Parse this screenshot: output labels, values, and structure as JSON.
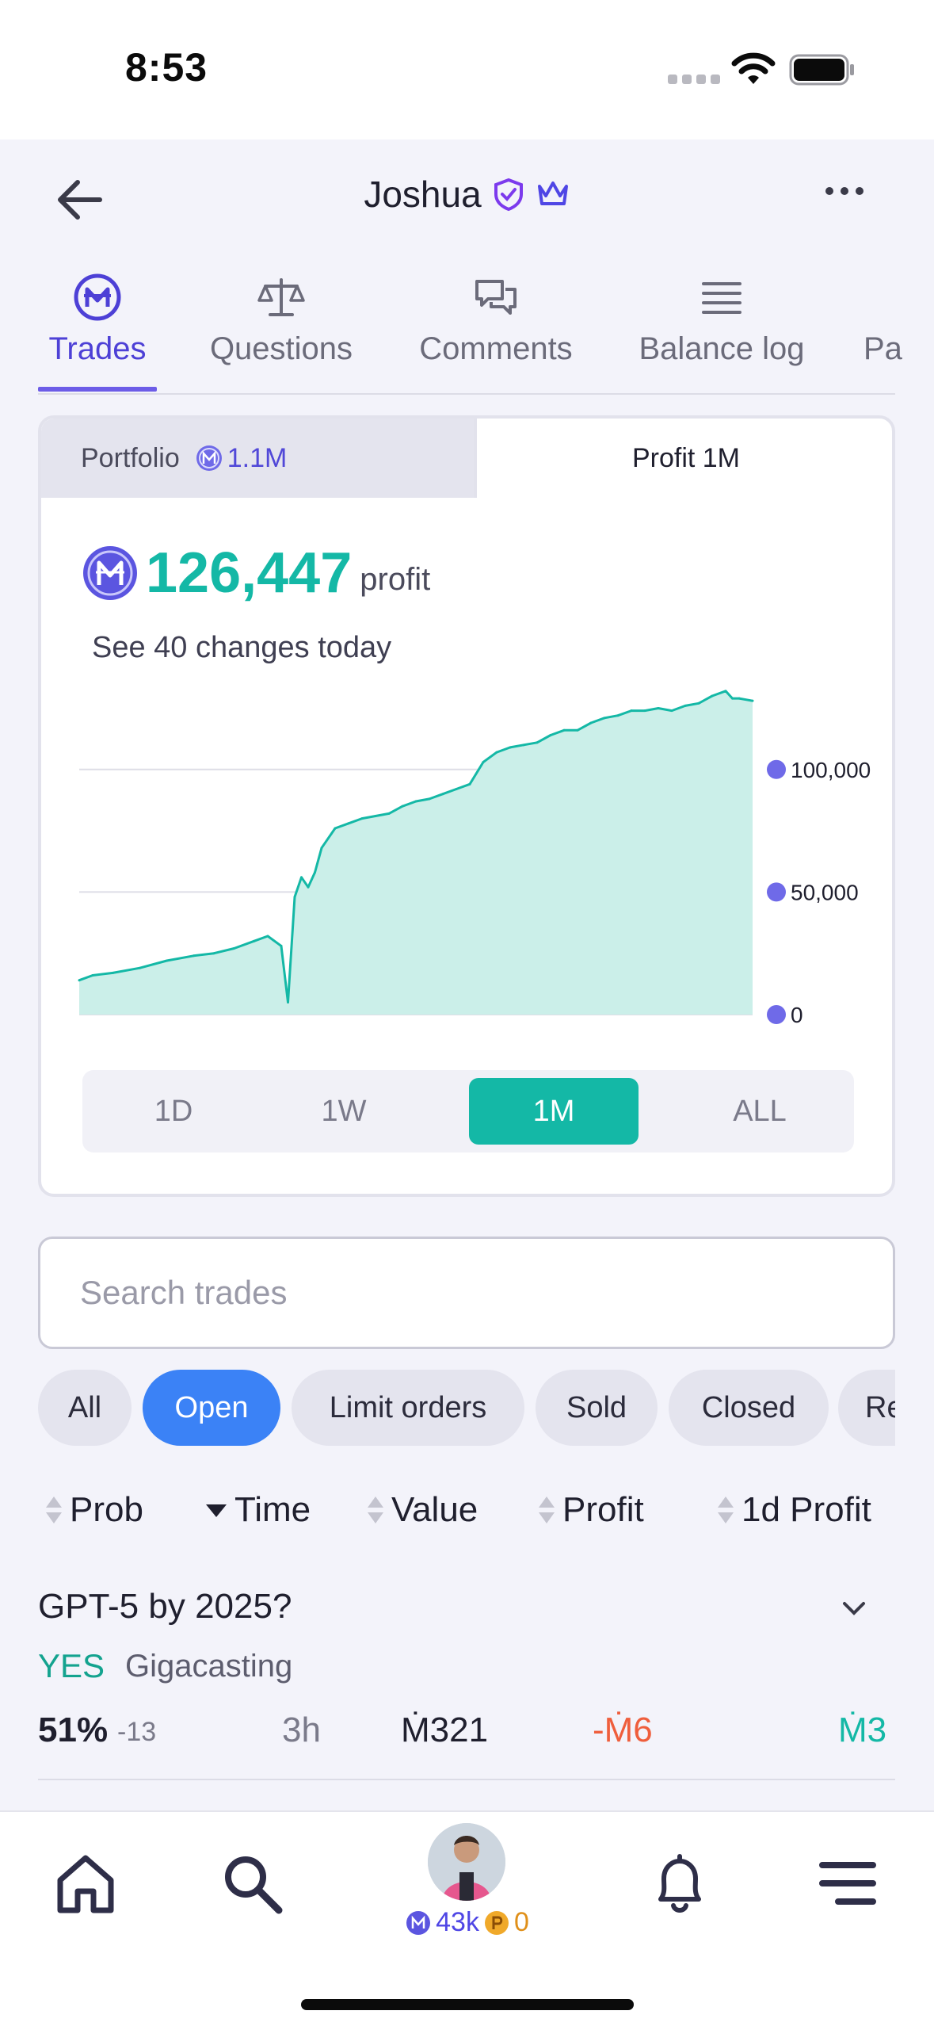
{
  "status_bar": {
    "time": "8:53"
  },
  "header": {
    "title": "Joshua"
  },
  "tabs": [
    {
      "label": "Trades",
      "icon": "mana-icon"
    },
    {
      "label": "Questions",
      "icon": "scale-icon"
    },
    {
      "label": "Comments",
      "icon": "chat-icon"
    },
    {
      "label": "Balance log",
      "icon": "list-icon"
    },
    {
      "label": "Pa",
      "icon": ""
    }
  ],
  "card": {
    "portfolio_label": "Portfolio",
    "portfolio_value": "1.1M",
    "profit_tab": "Profit 1M",
    "profit_value": "126,447",
    "profit_word": "profit",
    "changes_text": "See 40 changes today",
    "ranges": [
      "1D",
      "1W",
      "1M",
      "ALL"
    ],
    "active_range": "1M"
  },
  "chart_data": {
    "type": "area",
    "ylim": [
      0,
      130000
    ],
    "y_ticks": [
      "0",
      "50,000",
      "100,000"
    ],
    "y_tick_values": [
      0,
      50000,
      100000
    ],
    "grid": true,
    "color": "#14b8a6",
    "fill": "#cbefe9",
    "x": [
      0,
      0.02,
      0.05,
      0.09,
      0.13,
      0.17,
      0.2,
      0.23,
      0.26,
      0.28,
      0.3,
      0.31,
      0.32,
      0.33,
      0.34,
      0.35,
      0.36,
      0.38,
      0.4,
      0.42,
      0.44,
      0.46,
      0.48,
      0.5,
      0.52,
      0.54,
      0.56,
      0.58,
      0.6,
      0.62,
      0.64,
      0.66,
      0.68,
      0.7,
      0.72,
      0.74,
      0.76,
      0.78,
      0.8,
      0.82,
      0.84,
      0.86,
      0.88,
      0.9,
      0.92,
      0.94,
      0.96,
      0.97,
      0.98,
      1.0
    ],
    "y": [
      14000,
      16000,
      17000,
      19000,
      22000,
      24000,
      25000,
      27000,
      30000,
      32000,
      28000,
      5000,
      48000,
      56000,
      52000,
      58000,
      68000,
      76000,
      78000,
      80000,
      81000,
      82000,
      85000,
      87000,
      88000,
      90000,
      92000,
      94000,
      103000,
      107000,
      109000,
      110000,
      111000,
      114000,
      116000,
      116000,
      119000,
      121000,
      122000,
      124000,
      124000,
      125000,
      124000,
      126000,
      127000,
      130000,
      132000,
      129000,
      129000,
      128000
    ]
  },
  "search": {
    "placeholder": "Search trades",
    "value": ""
  },
  "filters": [
    "All",
    "Open",
    "Limit orders",
    "Sold",
    "Closed",
    "Re"
  ],
  "active_filter": "Open",
  "sort_columns": [
    "Prob",
    "Time",
    "Value",
    "Profit",
    "1d Profit"
  ],
  "trades": [
    {
      "question": "GPT-5 by 2025?",
      "outcome": "YES",
      "creator": "Gigacasting",
      "prob": "51%",
      "prob_change": "-13",
      "time": "3h",
      "value": "Ṁ321",
      "profit": "-Ṁ6",
      "profit_1d": "Ṁ3"
    }
  ],
  "bottom_nav": {
    "mana_balance": "43k",
    "prize_balance": "0"
  },
  "colors": {
    "accent": "#6c5ce7",
    "teal": "#14b8a6",
    "blue_chip": "#3b82f6",
    "loss": "#ef5e3c"
  }
}
